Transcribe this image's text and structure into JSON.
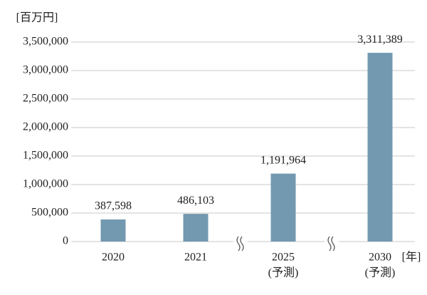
{
  "chart_data": {
    "type": "bar",
    "y_label": "[百万円]",
    "x_label": "[年]",
    "categories": [
      "2020",
      "2021",
      "2025",
      "2030"
    ],
    "category_notes": [
      null,
      null,
      "(予測)",
      "(予測)"
    ],
    "values": [
      387598,
      486103,
      1191964,
      3311389
    ],
    "value_labels": [
      "387,598",
      "486,103",
      "1,191,964",
      "3,311,389"
    ],
    "color": "#7399b0",
    "ylim": [
      0,
      3500000
    ],
    "yticks": [
      0,
      {
        "value": 500000,
        "label": "500,000"
      },
      {
        "value": 1000000,
        "label": "1,000,000"
      },
      {
        "value": 1500000,
        "label": "1,500,000"
      },
      {
        "value": 2000000,
        "label": "2,000,000"
      },
      {
        "value": 2500000,
        "label": "2,500,000"
      },
      {
        "value": 3000000,
        "label": "3,000,000"
      },
      {
        "value": 3500000,
        "label": "3,500,000"
      }
    ],
    "grid": true
  }
}
